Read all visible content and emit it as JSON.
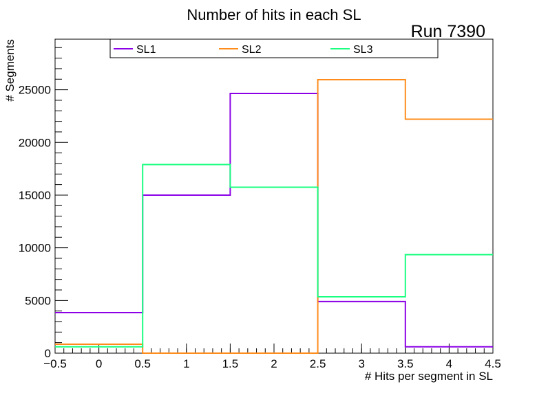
{
  "chart_data": {
    "type": "step",
    "title": "Number of hits in each SL",
    "annotation": "Run 7390",
    "xlabel": "# Hits per segment in SL",
    "ylabel": "# Segments",
    "xlim": [
      -0.5,
      4.5
    ],
    "ylim": [
      0,
      29800
    ],
    "bin_edges": [
      -0.5,
      0.5,
      1.5,
      2.5,
      3.5,
      4.5
    ],
    "x_ticks": [
      -0.5,
      0,
      0.5,
      1,
      1.5,
      2,
      2.5,
      3,
      3.5,
      4,
      4.5
    ],
    "x_tick_labels": [
      "−0.5",
      "0",
      "0.5",
      "1",
      "1.5",
      "2",
      "2.5",
      "3",
      "3.5",
      "4",
      "4.5"
    ],
    "y_ticks": [
      0,
      5000,
      10000,
      15000,
      20000,
      25000
    ],
    "y_tick_labels": [
      "0",
      "5000",
      "10000",
      "15000",
      "20000",
      "25000"
    ],
    "grid": false,
    "legend_position": "top",
    "series": [
      {
        "name": "SL1",
        "color": "#8b00e6",
        "values": [
          3850,
          15000,
          24650,
          4900,
          600
        ]
      },
      {
        "name": "SL2",
        "color": "#ff8c1a",
        "values": [
          850,
          0,
          0,
          25950,
          22200
        ]
      },
      {
        "name": "SL3",
        "color": "#1aff80",
        "values": [
          600,
          17900,
          15750,
          5350,
          9350
        ]
      }
    ]
  }
}
